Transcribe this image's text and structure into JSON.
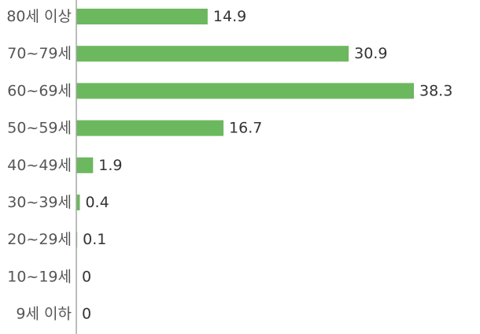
{
  "chart_data": {
    "type": "bar",
    "orientation": "horizontal",
    "categories": [
      "80세 이상",
      "70~79세",
      "60~69세",
      "50~59세",
      "40~49세",
      "30~39세",
      "20~29세",
      "10~19세",
      "9세 이하"
    ],
    "values": [
      14.9,
      30.9,
      38.3,
      16.7,
      1.9,
      0.4,
      0.1,
      0,
      0
    ],
    "value_labels": [
      "14.9",
      "30.9",
      "38.3",
      "16.7",
      "1.9",
      "0.4",
      "0.1",
      "0",
      "0"
    ],
    "xlim": [
      0,
      38.3
    ],
    "grid": false,
    "legend": "none",
    "bar_color": "#6cb85f"
  }
}
